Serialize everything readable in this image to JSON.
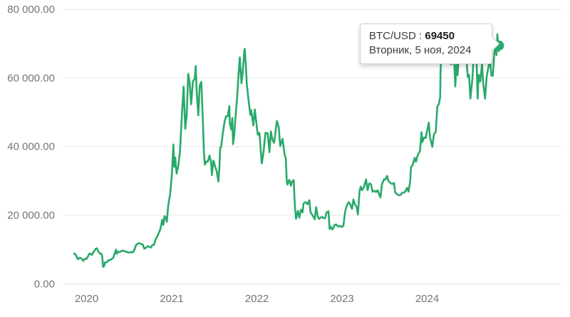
{
  "chart": {
    "tooltip": {
      "pair_label": "BTC/USD",
      "separator": " : ",
      "value": "69450",
      "date": "Вторник, 5 ноя, 2024"
    },
    "colors": {
      "line": "#28a96a",
      "marker": "#28a96a",
      "grid": "#e7e7e7",
      "axis_label": "#757575",
      "tooltip_border": "#cfcfcf",
      "tooltip_text": "#3c3c3c"
    }
  },
  "chart_data": {
    "type": "line",
    "title": "",
    "series_name": "BTC/USD",
    "legend": "none",
    "grid": "horizontal",
    "ylim": [
      0,
      80000
    ],
    "y_ticks": [
      0,
      20000,
      40000,
      60000,
      80000
    ],
    "y_tick_labels": [
      "0.00",
      "20 000.00",
      "40 000.00",
      "60 000.00",
      "80 000.00"
    ],
    "x_ticks": [
      "2020",
      "2021",
      "2022",
      "2023",
      "2024"
    ],
    "last_point": {
      "date": "2024-11-05",
      "value": 69450
    },
    "points": [
      [
        "2019-11-09",
        8800
      ],
      [
        "2019-11-16",
        8450
      ],
      [
        "2019-11-23",
        7300
      ],
      [
        "2019-11-27",
        7150
      ],
      [
        "2019-11-30",
        7550
      ],
      [
        "2019-12-07",
        7500
      ],
      [
        "2019-12-14",
        7080
      ],
      [
        "2019-12-18",
        6650
      ],
      [
        "2019-12-24",
        7250
      ],
      [
        "2019-12-31",
        7200
      ],
      [
        "2020-01-07",
        8000
      ],
      [
        "2020-01-14",
        8800
      ],
      [
        "2020-01-19",
        8650
      ],
      [
        "2020-01-24",
        8400
      ],
      [
        "2020-01-31",
        9350
      ],
      [
        "2020-02-05",
        9650
      ],
      [
        "2020-02-09",
        10150
      ],
      [
        "2020-02-14",
        10350
      ],
      [
        "2020-02-19",
        9600
      ],
      [
        "2020-02-26",
        8850
      ],
      [
        "2020-03-04",
        8750
      ],
      [
        "2020-03-08",
        8050
      ],
      [
        "2020-03-12",
        4900
      ],
      [
        "2020-03-16",
        5050
      ],
      [
        "2020-03-20",
        6200
      ],
      [
        "2020-03-28",
        6250
      ],
      [
        "2020-04-04",
        6850
      ],
      [
        "2020-04-11",
        6900
      ],
      [
        "2020-04-18",
        7250
      ],
      [
        "2020-04-25",
        7550
      ],
      [
        "2020-04-30",
        8750
      ],
      [
        "2020-05-07",
        9950
      ],
      [
        "2020-05-10",
        8700
      ],
      [
        "2020-05-16",
        9350
      ],
      [
        "2020-05-23",
        9200
      ],
      [
        "2020-05-30",
        9550
      ],
      [
        "2020-06-06",
        9650
      ],
      [
        "2020-06-13",
        9450
      ],
      [
        "2020-06-20",
        9350
      ],
      [
        "2020-06-27",
        9100
      ],
      [
        "2020-07-04",
        9100
      ],
      [
        "2020-07-11",
        9250
      ],
      [
        "2020-07-18",
        9150
      ],
      [
        "2020-07-25",
        9950
      ],
      [
        "2020-08-01",
        11300
      ],
      [
        "2020-08-08",
        11650
      ],
      [
        "2020-08-15",
        11850
      ],
      [
        "2020-08-22",
        11550
      ],
      [
        "2020-08-29",
        11500
      ],
      [
        "2020-09-05",
        10250
      ],
      [
        "2020-09-12",
        10450
      ],
      [
        "2020-09-19",
        10950
      ],
      [
        "2020-09-26",
        10750
      ],
      [
        "2020-10-03",
        10550
      ],
      [
        "2020-10-10",
        11300
      ],
      [
        "2020-10-17",
        11350
      ],
      [
        "2020-10-24",
        13050
      ],
      [
        "2020-10-31",
        13800
      ],
      [
        "2020-11-07",
        14850
      ],
      [
        "2020-11-14",
        16050
      ],
      [
        "2020-11-21",
        18650
      ],
      [
        "2020-11-26",
        17150
      ],
      [
        "2020-12-01",
        19700
      ],
      [
        "2020-12-07",
        19150
      ],
      [
        "2020-12-11",
        18050
      ],
      [
        "2020-12-17",
        22800
      ],
      [
        "2020-12-26",
        26450
      ],
      [
        "2021-01-02",
        32150
      ],
      [
        "2021-01-08",
        40600
      ],
      [
        "2021-01-12",
        34050
      ],
      [
        "2021-01-16",
        36800
      ],
      [
        "2021-01-22",
        32100
      ],
      [
        "2021-01-29",
        34300
      ],
      [
        "2021-02-05",
        38300
      ],
      [
        "2021-02-12",
        47400
      ],
      [
        "2021-02-21",
        57500
      ],
      [
        "2021-02-28",
        45200
      ],
      [
        "2021-03-06",
        48900
      ],
      [
        "2021-03-13",
        61200
      ],
      [
        "2021-03-20",
        58100
      ],
      [
        "2021-03-25",
        52300
      ],
      [
        "2021-04-02",
        59000
      ],
      [
        "2021-04-10",
        59800
      ],
      [
        "2021-04-14",
        63500
      ],
      [
        "2021-04-18",
        56200
      ],
      [
        "2021-04-25",
        49100
      ],
      [
        "2021-05-01",
        57800
      ],
      [
        "2021-05-08",
        58850
      ],
      [
        "2021-05-15",
        46450
      ],
      [
        "2021-05-19",
        38400
      ],
      [
        "2021-05-23",
        34750
      ],
      [
        "2021-05-29",
        35650
      ],
      [
        "2021-06-05",
        35550
      ],
      [
        "2021-06-12",
        37350
      ],
      [
        "2021-06-19",
        35500
      ],
      [
        "2021-06-22",
        31700
      ],
      [
        "2021-06-29",
        35900
      ],
      [
        "2021-07-06",
        34200
      ],
      [
        "2021-07-13",
        32750
      ],
      [
        "2021-07-20",
        29800
      ],
      [
        "2021-07-24",
        33600
      ],
      [
        "2021-07-28",
        39750
      ],
      [
        "2021-08-01",
        39900
      ],
      [
        "2021-08-08",
        43800
      ],
      [
        "2021-08-15",
        47000
      ],
      [
        "2021-08-22",
        48850
      ],
      [
        "2021-08-29",
        48800
      ],
      [
        "2021-09-05",
        51800
      ],
      [
        "2021-09-07",
        46800
      ],
      [
        "2021-09-13",
        44950
      ],
      [
        "2021-09-18",
        48300
      ],
      [
        "2021-09-21",
        40700
      ],
      [
        "2021-09-26",
        43200
      ],
      [
        "2021-10-01",
        48200
      ],
      [
        "2021-10-08",
        53950
      ],
      [
        "2021-10-15",
        61600
      ],
      [
        "2021-10-20",
        66000
      ],
      [
        "2021-10-27",
        58450
      ],
      [
        "2021-11-01",
        61300
      ],
      [
        "2021-11-08",
        67550
      ],
      [
        "2021-11-10",
        68500
      ],
      [
        "2021-11-15",
        63600
      ],
      [
        "2021-11-19",
        58100
      ],
      [
        "2021-11-26",
        53800
      ],
      [
        "2021-12-04",
        49250
      ],
      [
        "2021-12-08",
        50650
      ],
      [
        "2021-12-17",
        46150
      ],
      [
        "2021-12-23",
        50800
      ],
      [
        "2021-12-31",
        46200
      ],
      [
        "2022-01-05",
        43450
      ],
      [
        "2022-01-12",
        43950
      ],
      [
        "2022-01-22",
        35050
      ],
      [
        "2022-01-29",
        38150
      ],
      [
        "2022-02-07",
        44000
      ],
      [
        "2022-02-16",
        43900
      ],
      [
        "2022-02-24",
        38350
      ],
      [
        "2022-03-02",
        44400
      ],
      [
        "2022-03-09",
        41950
      ],
      [
        "2022-03-16",
        41100
      ],
      [
        "2022-03-28",
        47450
      ],
      [
        "2022-04-05",
        45500
      ],
      [
        "2022-04-11",
        40100
      ],
      [
        "2022-04-21",
        42250
      ],
      [
        "2022-04-30",
        37650
      ],
      [
        "2022-05-05",
        36550
      ],
      [
        "2022-05-09",
        30100
      ],
      [
        "2022-05-12",
        28900
      ],
      [
        "2022-05-20",
        30300
      ],
      [
        "2022-05-27",
        28600
      ],
      [
        "2022-06-01",
        29800
      ],
      [
        "2022-06-08",
        30200
      ],
      [
        "2022-06-13",
        22500
      ],
      [
        "2022-06-18",
        18950
      ],
      [
        "2022-06-26",
        21250
      ],
      [
        "2022-07-02",
        19250
      ],
      [
        "2022-07-09",
        21600
      ],
      [
        "2022-07-16",
        20800
      ],
      [
        "2022-07-20",
        23400
      ],
      [
        "2022-07-29",
        23800
      ],
      [
        "2022-08-06",
        23150
      ],
      [
        "2022-08-14",
        24350
      ],
      [
        "2022-08-19",
        20850
      ],
      [
        "2022-08-27",
        20050
      ],
      [
        "2022-09-06",
        18800
      ],
      [
        "2022-09-12",
        22350
      ],
      [
        "2022-09-19",
        19550
      ],
      [
        "2022-09-25",
        18900
      ],
      [
        "2022-10-01",
        19300
      ],
      [
        "2022-10-08",
        19450
      ],
      [
        "2022-10-15",
        19100
      ],
      [
        "2022-10-21",
        19150
      ],
      [
        "2022-10-26",
        20750
      ],
      [
        "2022-11-04",
        21150
      ],
      [
        "2022-11-09",
        15900
      ],
      [
        "2022-11-14",
        16600
      ],
      [
        "2022-11-21",
        15800
      ],
      [
        "2022-11-30",
        17150
      ],
      [
        "2022-12-08",
        17250
      ],
      [
        "2022-12-16",
        16650
      ],
      [
        "2022-12-24",
        16850
      ],
      [
        "2022-12-31",
        16550
      ],
      [
        "2023-01-07",
        16950
      ],
      [
        "2023-01-14",
        20950
      ],
      [
        "2023-01-21",
        22700
      ],
      [
        "2023-01-29",
        23750
      ],
      [
        "2023-02-04",
        23350
      ],
      [
        "2023-02-13",
        21800
      ],
      [
        "2023-02-19",
        24550
      ],
      [
        "2023-02-25",
        23200
      ],
      [
        "2023-03-05",
        22400
      ],
      [
        "2023-03-10",
        20200
      ],
      [
        "2023-03-17",
        26900
      ],
      [
        "2023-03-22",
        28300
      ],
      [
        "2023-03-28",
        27250
      ],
      [
        "2023-04-05",
        28200
      ],
      [
        "2023-04-14",
        30400
      ],
      [
        "2023-04-21",
        27300
      ],
      [
        "2023-04-26",
        28850
      ],
      [
        "2023-04-29",
        29300
      ],
      [
        "2023-05-06",
        28900
      ],
      [
        "2023-05-12",
        26800
      ],
      [
        "2023-05-20",
        27100
      ],
      [
        "2023-05-27",
        26750
      ],
      [
        "2023-06-03",
        27250
      ],
      [
        "2023-06-10",
        25850
      ],
      [
        "2023-06-15",
        25150
      ],
      [
        "2023-06-21",
        28900
      ],
      [
        "2023-06-30",
        30450
      ],
      [
        "2023-07-06",
        30350
      ],
      [
        "2023-07-13",
        31450
      ],
      [
        "2023-07-20",
        29850
      ],
      [
        "2023-07-29",
        29300
      ],
      [
        "2023-08-05",
        29050
      ],
      [
        "2023-08-12",
        29400
      ],
      [
        "2023-08-17",
        26650
      ],
      [
        "2023-08-26",
        26050
      ],
      [
        "2023-09-02",
        25800
      ],
      [
        "2023-09-09",
        25900
      ],
      [
        "2023-09-16",
        26550
      ],
      [
        "2023-09-23",
        26550
      ],
      [
        "2023-09-30",
        26950
      ],
      [
        "2023-10-07",
        27950
      ],
      [
        "2023-10-13",
        26850
      ],
      [
        "2023-10-20",
        29700
      ],
      [
        "2023-10-24",
        33950
      ],
      [
        "2023-10-31",
        34650
      ],
      [
        "2023-11-09",
        36700
      ],
      [
        "2023-11-14",
        35550
      ],
      [
        "2023-11-21",
        37400
      ],
      [
        "2023-12-01",
        38700
      ],
      [
        "2023-12-08",
        44150
      ],
      [
        "2023-12-11",
        41250
      ],
      [
        "2023-12-19",
        42650
      ],
      [
        "2023-12-26",
        42500
      ],
      [
        "2024-01-02",
        44950
      ],
      [
        "2024-01-08",
        46950
      ],
      [
        "2024-01-13",
        42850
      ],
      [
        "2024-01-23",
        39900
      ],
      [
        "2024-01-30",
        43500
      ],
      [
        "2024-02-07",
        44350
      ],
      [
        "2024-02-14",
        51800
      ],
      [
        "2024-02-20",
        52250
      ],
      [
        "2024-02-26",
        54500
      ],
      [
        "2024-02-28",
        62500
      ],
      [
        "2024-03-04",
        68300
      ],
      [
        "2024-03-08",
        68300
      ],
      [
        "2024-03-13",
        73100
      ],
      [
        "2024-03-17",
        65300
      ],
      [
        "2024-03-25",
        69900
      ],
      [
        "2024-04-01",
        69650
      ],
      [
        "2024-04-08",
        71600
      ],
      [
        "2024-04-13",
        63900
      ],
      [
        "2024-04-20",
        64950
      ],
      [
        "2024-04-27",
        63750
      ],
      [
        "2024-05-01",
        57500
      ],
      [
        "2024-05-06",
        64050
      ],
      [
        "2024-05-11",
        60800
      ],
      [
        "2024-05-16",
        66250
      ],
      [
        "2024-05-21",
        71400
      ],
      [
        "2024-05-25",
        68550
      ],
      [
        "2024-06-01",
        67750
      ],
      [
        "2024-06-06",
        70800
      ],
      [
        "2024-06-11",
        67300
      ],
      [
        "2024-06-18",
        65150
      ],
      [
        "2024-06-24",
        60250
      ],
      [
        "2024-06-29",
        60900
      ],
      [
        "2024-07-05",
        54000
      ],
      [
        "2024-07-13",
        59200
      ],
      [
        "2024-07-20",
        67150
      ],
      [
        "2024-07-29",
        69900
      ],
      [
        "2024-08-02",
        61400
      ],
      [
        "2024-08-05",
        54000
      ],
      [
        "2024-08-09",
        60900
      ],
      [
        "2024-08-16",
        58900
      ],
      [
        "2024-08-24",
        64100
      ],
      [
        "2024-08-28",
        59000
      ],
      [
        "2024-09-06",
        53950
      ],
      [
        "2024-09-13",
        60500
      ],
      [
        "2024-09-21",
        63350
      ],
      [
        "2024-09-27",
        65750
      ],
      [
        "2024-10-03",
        60750
      ],
      [
        "2024-10-09",
        60600
      ],
      [
        "2024-10-16",
        67600
      ],
      [
        "2024-10-21",
        69000
      ],
      [
        "2024-10-25",
        66650
      ],
      [
        "2024-10-29",
        72700
      ],
      [
        "2024-11-01",
        69450
      ],
      [
        "2024-11-04",
        67800
      ],
      [
        "2024-11-05",
        69450
      ]
    ]
  }
}
